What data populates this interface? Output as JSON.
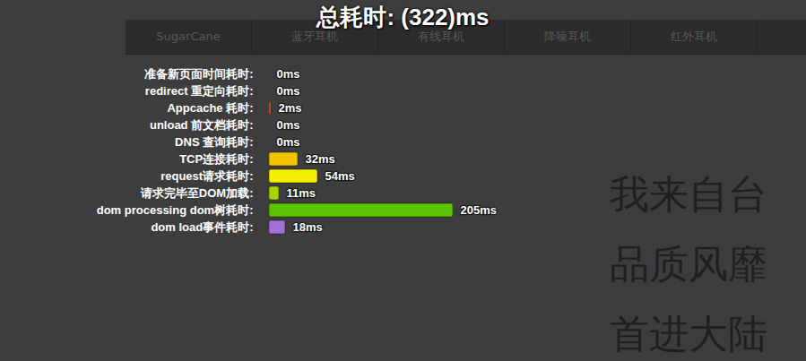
{
  "page": {
    "nav": [
      "SugarCane",
      "蓝牙耳机",
      "有线耳机",
      "降噪耳机",
      "红外耳机"
    ],
    "headline": [
      "我来自台",
      "品质风靡",
      "首进大陆"
    ]
  },
  "chart_data": {
    "type": "bar",
    "orientation": "horizontal",
    "title": "总耗时: (322)ms",
    "categories": [
      "准备新页面时间耗时:",
      "redirect 重定向耗时:",
      "Appcache 耗时:",
      "unload 前文档耗时:",
      "DNS 查询耗时:",
      "TCP连接耗时:",
      "request请求耗时:",
      "请求完毕至DOM加载:",
      "dom processing dom树耗时:",
      "dom load事件耗时:"
    ],
    "values": [
      0,
      0,
      2,
      0,
      0,
      32,
      54,
      11,
      205,
      18
    ],
    "value_labels": [
      "0ms",
      "0ms",
      "2ms",
      "0ms",
      "0ms",
      "32ms",
      "54ms",
      "11ms",
      "205ms",
      "18ms"
    ],
    "colors": [
      "#888888",
      "#888888",
      "#e8601c",
      "#888888",
      "#888888",
      "#f2c300",
      "#f5f000",
      "#a8d400",
      "#5cc400",
      "#a070d8"
    ],
    "xlim": [
      0,
      205
    ],
    "data_labels": true,
    "tick_labels": "y"
  }
}
